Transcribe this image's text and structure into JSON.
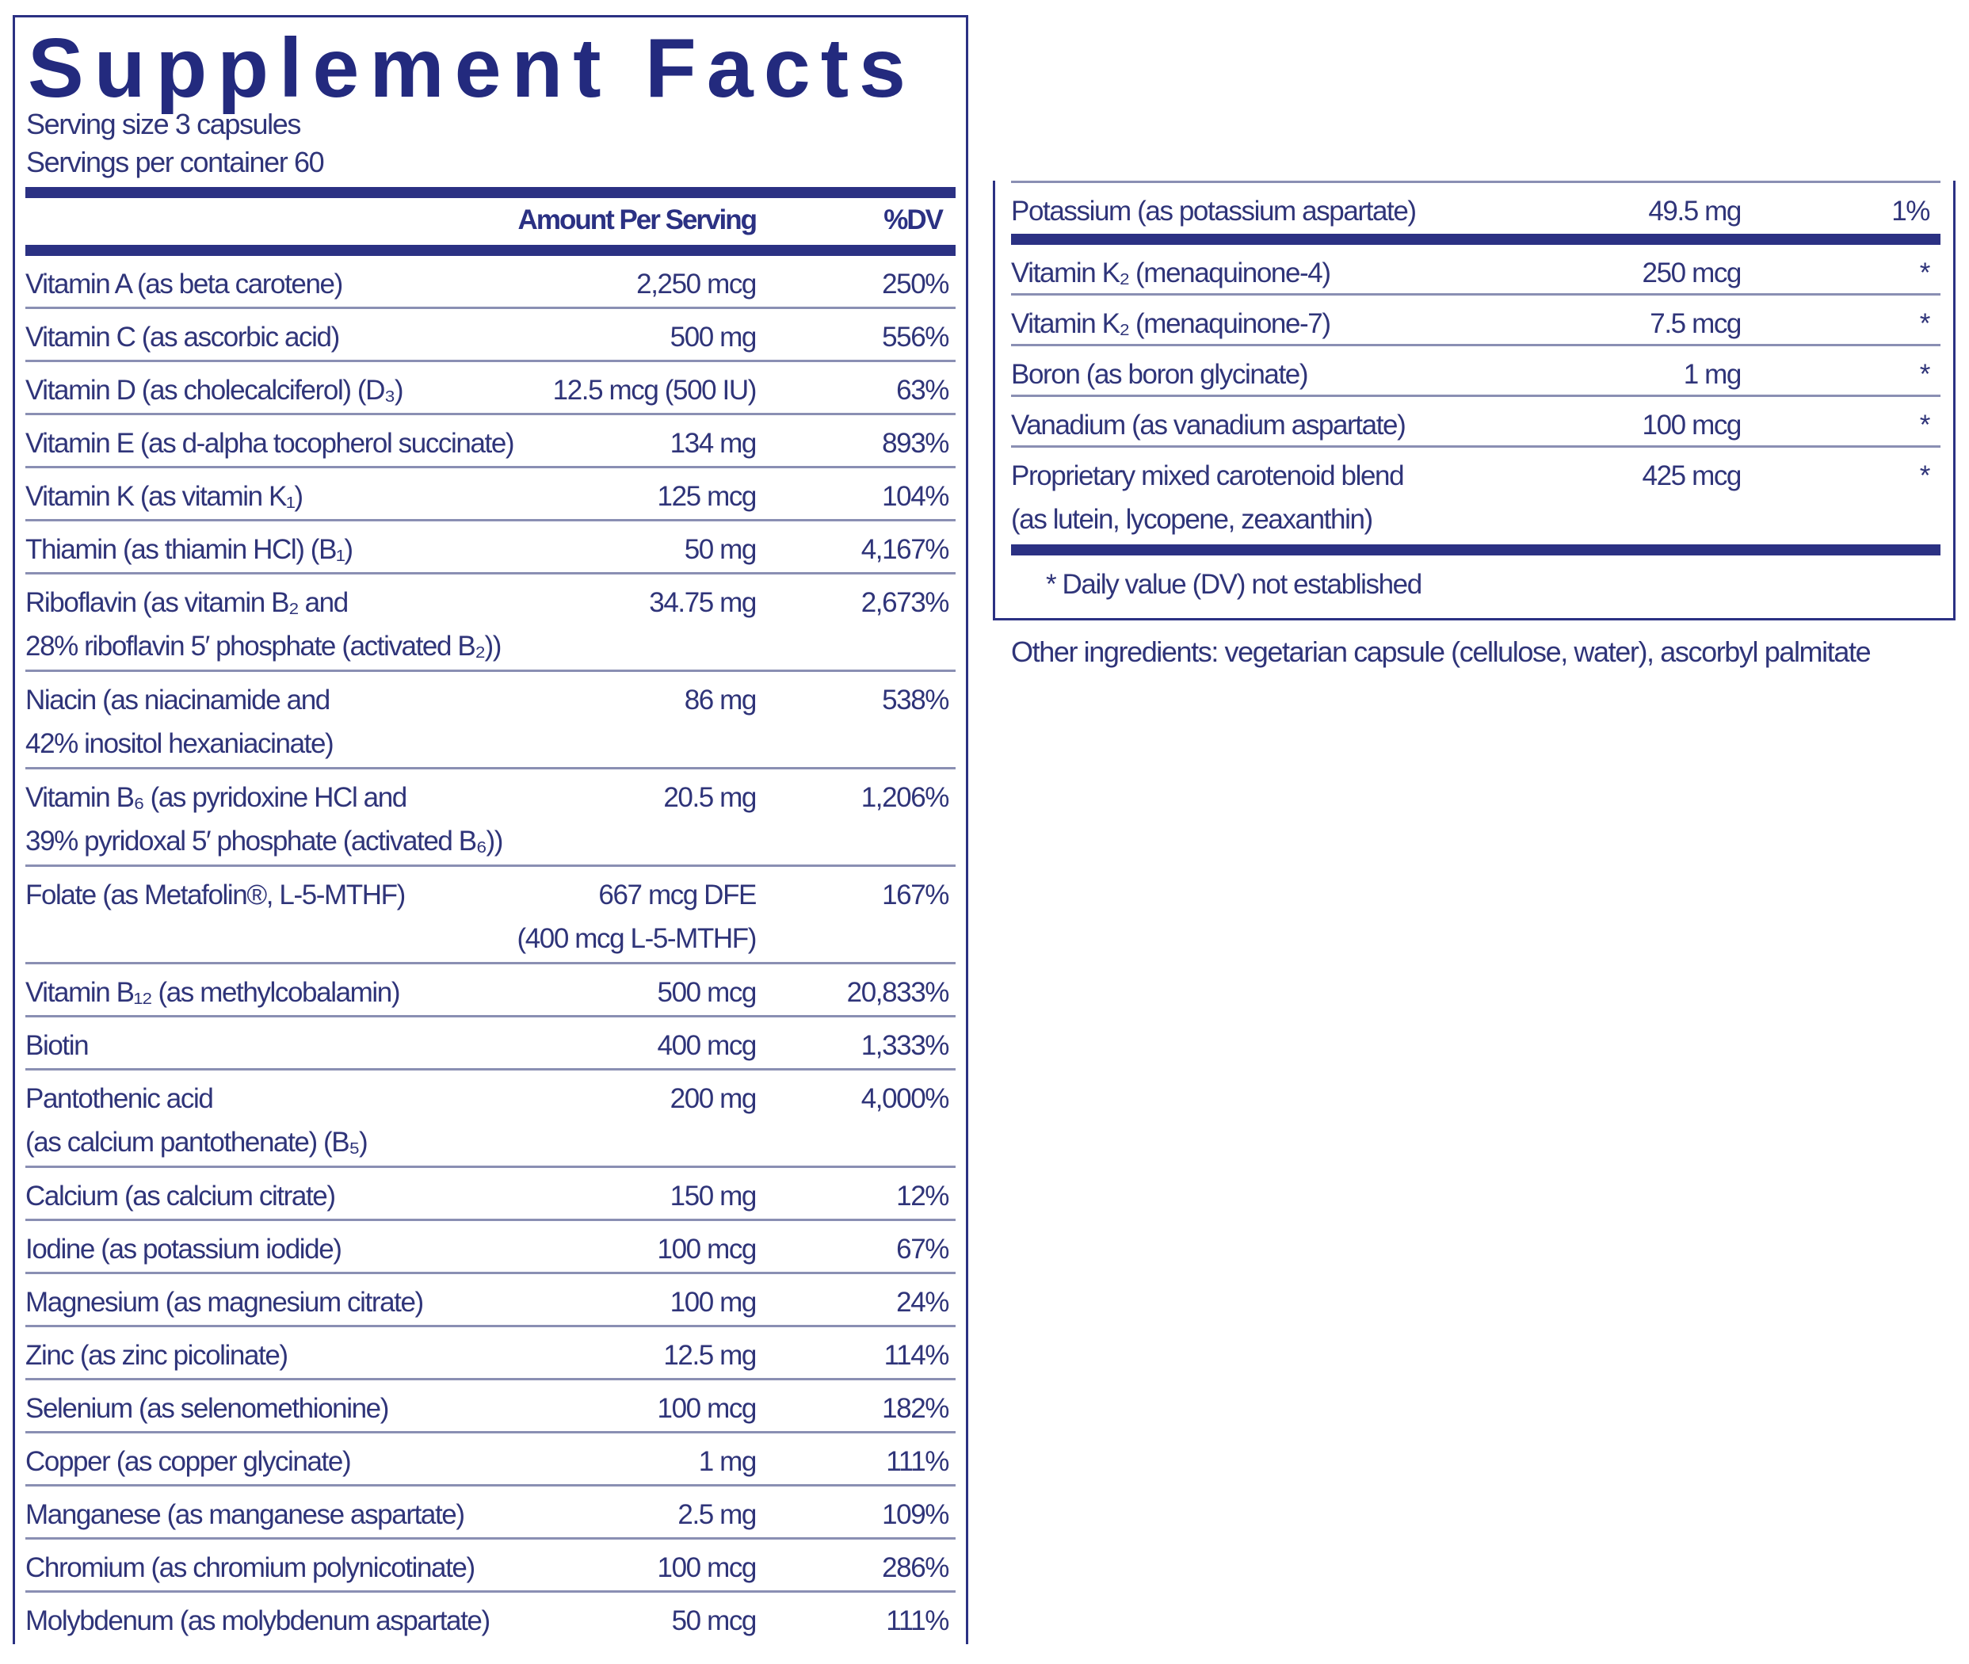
{
  "title": "Supplement Facts",
  "serving_size": "Serving size  3 capsules",
  "servings_per_container": "Servings per container  60",
  "header": {
    "amount": "Amount Per Serving",
    "dv": "%DV"
  },
  "colors": {
    "navy": "#2b3183",
    "text": "#2f3479",
    "rule": "#8a8fb3"
  },
  "left_rows": [
    {
      "name": [
        "Vitamin A (as beta carotene)"
      ],
      "amount": [
        "2,250 mcg"
      ],
      "dv": "250%"
    },
    {
      "name": [
        "Vitamin C (as ascorbic acid)"
      ],
      "amount": [
        "500 mg"
      ],
      "dv": "556%"
    },
    {
      "name": [
        "Vitamin D (as cholecalciferol) (D₃)"
      ],
      "amount": [
        "12.5 mcg (500 IU)"
      ],
      "dv": "63%"
    },
    {
      "name": [
        "Vitamin E (as d-alpha tocopherol succinate)"
      ],
      "amount": [
        "134 mg"
      ],
      "dv": "893%"
    },
    {
      "name": [
        "Vitamin K (as vitamin K₁)"
      ],
      "amount": [
        "125 mcg"
      ],
      "dv": "104%"
    },
    {
      "name": [
        "Thiamin (as thiamin HCl) (B₁)"
      ],
      "amount": [
        "50 mg"
      ],
      "dv": "4,167%"
    },
    {
      "name": [
        "Riboflavin (as vitamin B₂ and",
        "28% riboflavin 5′ phosphate (activated B₂))"
      ],
      "amount": [
        "34.75 mg"
      ],
      "dv": "2,673%"
    },
    {
      "name": [
        "Niacin (as niacinamide and",
        "42% inositol hexaniacinate)"
      ],
      "amount": [
        "86 mg"
      ],
      "dv": "538%"
    },
    {
      "name": [
        "Vitamin B₆ (as pyridoxine HCl and",
        "39% pyridoxal 5′ phosphate (activated B₆))"
      ],
      "amount": [
        "20.5 mg"
      ],
      "dv": "1,206%"
    },
    {
      "name": [
        "Folate (as Metafolin®, L-5-MTHF)"
      ],
      "amount": [
        "667 mcg DFE",
        "(400 mcg L-5-MTHF)"
      ],
      "dv": "167%"
    },
    {
      "name": [
        "Vitamin B₁₂ (as methylcobalamin)"
      ],
      "amount": [
        "500 mcg"
      ],
      "dv": "20,833%"
    },
    {
      "name": [
        "Biotin"
      ],
      "amount": [
        "400 mcg"
      ],
      "dv": "1,333%"
    },
    {
      "name": [
        "Pantothenic acid",
        "(as calcium pantothenate) (B₅)"
      ],
      "amount": [
        "200 mg"
      ],
      "dv": "4,000%"
    },
    {
      "name": [
        "Calcium (as calcium citrate)"
      ],
      "amount": [
        "150 mg"
      ],
      "dv": "12%"
    },
    {
      "name": [
        "Iodine (as potassium iodide)"
      ],
      "amount": [
        "100 mcg"
      ],
      "dv": "67%"
    },
    {
      "name": [
        "Magnesium (as magnesium citrate)"
      ],
      "amount": [
        "100 mg"
      ],
      "dv": "24%"
    },
    {
      "name": [
        "Zinc (as zinc picolinate)"
      ],
      "amount": [
        "12.5 mg"
      ],
      "dv": "114%"
    },
    {
      "name": [
        "Selenium (as selenomethionine)"
      ],
      "amount": [
        "100 mcg"
      ],
      "dv": "182%"
    },
    {
      "name": [
        "Copper (as copper glycinate)"
      ],
      "amount": [
        "1 mg"
      ],
      "dv": "111%"
    },
    {
      "name": [
        "Manganese (as manganese aspartate)"
      ],
      "amount": [
        "2.5 mg"
      ],
      "dv": "109%"
    },
    {
      "name": [
        "Chromium (as chromium polynicotinate)"
      ],
      "amount": [
        "100 mcg"
      ],
      "dv": "286%"
    },
    {
      "name": [
        "Molybdenum (as molybdenum aspartate)"
      ],
      "amount": [
        "50 mcg"
      ],
      "dv": "111%"
    }
  ],
  "right_rows": [
    {
      "name": [
        "Potassium (as potassium aspartate)"
      ],
      "amount": [
        "49.5 mg"
      ],
      "dv": "1%"
    },
    {
      "name": [
        "Vitamin K₂ (menaquinone-4)"
      ],
      "amount": [
        "250 mcg"
      ],
      "dv": "*"
    },
    {
      "name": [
        "Vitamin K₂ (menaquinone-7)"
      ],
      "amount": [
        "7.5 mcg"
      ],
      "dv": "*"
    },
    {
      "name": [
        "Boron (as boron glycinate)"
      ],
      "amount": [
        "1 mg"
      ],
      "dv": "*"
    },
    {
      "name": [
        "Vanadium (as vanadium aspartate)"
      ],
      "amount": [
        "100 mcg"
      ],
      "dv": "*"
    },
    {
      "name": [
        "Proprietary mixed carotenoid blend",
        "(as lutein, lycopene, zeaxanthin)"
      ],
      "amount": [
        "425 mcg"
      ],
      "dv": "*"
    }
  ],
  "footnote": "* Daily value (DV) not established",
  "other_ingredients": "Other ingredients: vegetarian capsule (cellulose, water), ascorbyl palmitate"
}
